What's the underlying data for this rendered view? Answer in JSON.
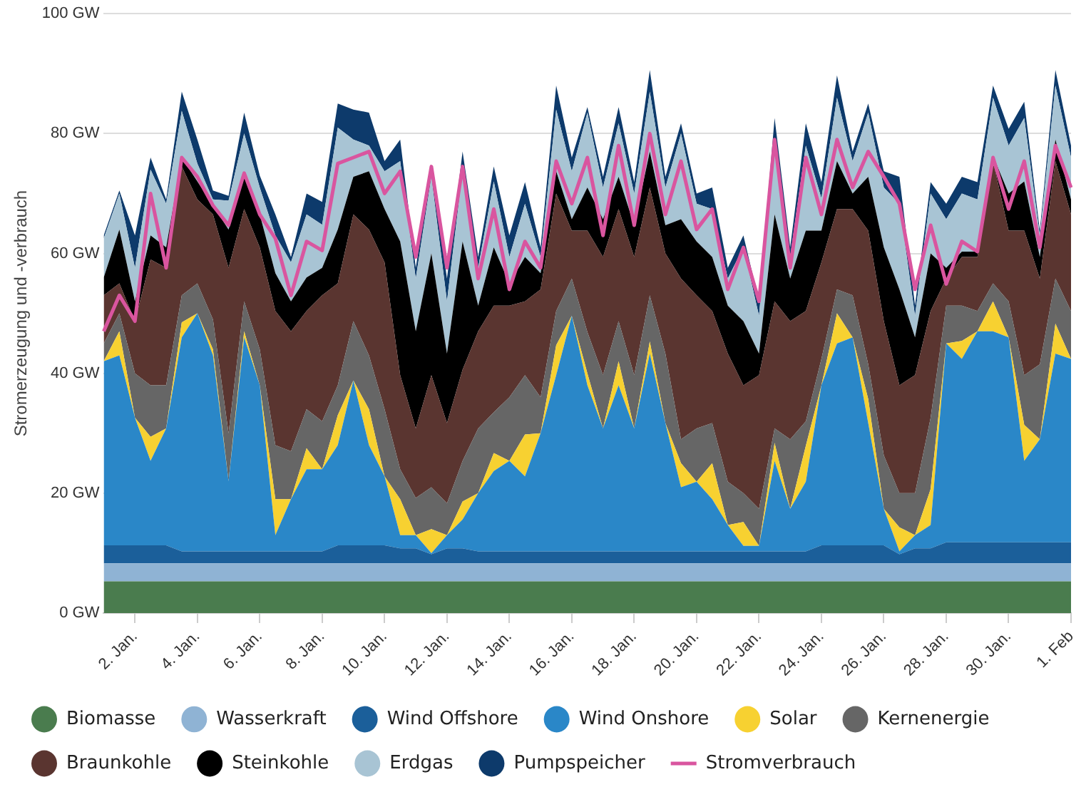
{
  "chart_data": {
    "type": "area",
    "stacked": true,
    "ylabel": "Stromerzeugung und -verbrauch",
    "legend": "bottom",
    "grid": "y",
    "categories": [
      null,
      null,
      "2. Jan.",
      null,
      null,
      null,
      "4. Jan.",
      null,
      null,
      null,
      "6. Jan.",
      null,
      null,
      null,
      "8. Jan.",
      null,
      null,
      null,
      "10. Jan.",
      null,
      null,
      null,
      "12. Jan.",
      null,
      null,
      null,
      "14. Jan.",
      null,
      null,
      null,
      "16. Jan.",
      null,
      null,
      null,
      "18. Jan.",
      null,
      null,
      null,
      "20. Jan.",
      null,
      null,
      null,
      "22. Jan.",
      null,
      null,
      null,
      "24. Jan.",
      null,
      null,
      null,
      "26. Jan.",
      null,
      null,
      null,
      "28. Jan.",
      null,
      null,
      null,
      "30. Jan.",
      null,
      null,
      null,
      "1. Feb"
    ],
    "ylim": [
      0,
      100
    ],
    "yticks": [
      {
        "value": 0,
        "label": "0 GW"
      },
      {
        "value": 20,
        "label": "20 GW"
      },
      {
        "value": 40,
        "label": "40 GW"
      },
      {
        "value": 60,
        "label": "60 GW"
      },
      {
        "value": 80,
        "label": "80 GW"
      },
      {
        "value": 100,
        "label": "100 GW"
      }
    ],
    "series": [
      {
        "name": "Biomasse",
        "color": "#4a7c4e",
        "values": [
          5.3,
          5.3,
          5.3,
          5.3,
          5.3,
          5.3,
          5.3,
          5.3,
          5.3,
          5.3,
          5.3,
          5.3,
          5.3,
          5.3,
          5.3,
          5.3,
          5.3,
          5.3,
          5.3,
          5.3,
          5.3,
          5.3,
          5.3,
          5.3,
          5.3,
          5.3,
          5.3,
          5.3,
          5.3,
          5.3,
          5.3,
          5.3,
          5.3,
          5.3,
          5.3,
          5.3,
          5.3,
          5.3,
          5.3,
          5.3,
          5.3,
          5.3,
          5.3,
          5.3,
          5.3,
          5.3,
          5.3,
          5.3,
          5.3,
          5.3,
          5.3,
          5.3,
          5.3,
          5.3,
          5.3,
          5.3,
          5.3,
          5.3,
          5.3,
          5.3,
          5.3,
          5.3,
          5.3
        ]
      },
      {
        "name": "Wasserkraft",
        "color": "#8fb3d4",
        "values": [
          3,
          3,
          3,
          3,
          3,
          3,
          3,
          3,
          3,
          3,
          3,
          3,
          3,
          3,
          3,
          3,
          3,
          3,
          3,
          3,
          3,
          3,
          3,
          3,
          3,
          3,
          3,
          3,
          3,
          3,
          3,
          3,
          3,
          3,
          3,
          3,
          3,
          3,
          3,
          3,
          3,
          3,
          3,
          3,
          3,
          3,
          3,
          3,
          3,
          3,
          3,
          3,
          3,
          3,
          3,
          3,
          3,
          3,
          3,
          3,
          3,
          3,
          3
        ]
      },
      {
        "name": "Wind Offshore",
        "color": "#1b5f9a",
        "values": [
          3,
          3,
          3,
          3,
          3,
          2,
          2,
          2,
          2,
          2,
          2,
          2,
          2,
          2,
          2,
          3,
          3,
          3,
          3,
          2.5,
          2.5,
          1.5,
          2.5,
          2.5,
          2,
          2,
          2,
          2,
          2,
          2,
          2,
          2,
          2,
          2,
          2,
          2,
          2,
          2,
          2,
          2,
          2,
          2,
          2,
          2,
          2,
          2,
          3,
          3,
          3,
          3,
          3,
          1.5,
          2.5,
          2.5,
          3.5,
          3.5,
          3.5,
          3.5,
          3.5,
          3.5,
          3.5,
          3.5,
          3.5
        ]
      },
      {
        "name": "Wind Onshore",
        "color": "#2a87c8",
        "values": [
          30.7,
          31.7,
          21.3,
          14.1,
          19.5,
          35.7,
          39.7,
          32.7,
          11.7,
          35.7,
          27.7,
          2.7,
          8.7,
          13.7,
          13.7,
          16.7,
          27.5,
          16.7,
          11.5,
          2.2,
          2.2,
          0.2,
          2.2,
          4.8,
          9.7,
          13.4,
          15.1,
          12.5,
          19.7,
          29.4,
          39.3,
          27.7,
          20.5,
          27.7,
          20.5,
          33,
          21.4,
          10.7,
          11.6,
          8.7,
          4.4,
          0.9,
          0.9,
          15.1,
          7.1,
          11.6,
          26.7,
          33.7,
          34.7,
          20.4,
          6.1,
          0.5,
          2.2,
          3.9,
          33.2,
          30.6,
          35.2,
          35.2,
          34.2,
          13.6,
          17.2,
          31.5,
          30.6
        ]
      },
      {
        "name": "Solar",
        "color": "#f7d131",
        "values": [
          0,
          4,
          0,
          4,
          0,
          2.5,
          0,
          1,
          0,
          1,
          0,
          6,
          0,
          3.5,
          0,
          5,
          0,
          6,
          0,
          6,
          0,
          4,
          0,
          3,
          0,
          3,
          0,
          7,
          0,
          5,
          0,
          2,
          0,
          4,
          0,
          2,
          0,
          4,
          0,
          6,
          0,
          4,
          0,
          3,
          0,
          6,
          0,
          5,
          0,
          4,
          0,
          4,
          0,
          6,
          0,
          3,
          0,
          5,
          0,
          6,
          0,
          5,
          0
        ]
      },
      {
        "name": "Kernenergie",
        "color": "#666666",
        "values": [
          3,
          3,
          7.4,
          8.6,
          7.2,
          4.5,
          5,
          5,
          8,
          5,
          6,
          9,
          8,
          6.5,
          8,
          5,
          9.9,
          9,
          11.2,
          5,
          6.2,
          7,
          5.3,
          6.8,
          10.8,
          6.8,
          10.6,
          9.9,
          6,
          5.7,
          6.2,
          6.9,
          8.9,
          6.7,
          8.9,
          7.7,
          11.6,
          4,
          8.9,
          6.7,
          7.2,
          4.8,
          6.2,
          2.4,
          11.6,
          4.1,
          4.4,
          4,
          7,
          5.8,
          8.9,
          5.7,
          7,
          11.9,
          6.3,
          5.9,
          3.4,
          3,
          6,
          8.3,
          12.5,
          7.5,
          8
        ]
      },
      {
        "name": "Braunkohle",
        "color": "#5a3530",
        "values": [
          8,
          5,
          8.7,
          21,
          19.6,
          21.5,
          14,
          17.5,
          27.6,
          15.4,
          17,
          22.4,
          20,
          16.4,
          21,
          17,
          17.8,
          21,
          24.5,
          15.7,
          11.6,
          18.7,
          13.4,
          15.2,
          16.2,
          17.8,
          15.3,
          12.3,
          18,
          19.6,
          8,
          16.9,
          19.7,
          18.7,
          19.7,
          18,
          16.7,
          26.8,
          22.2,
          18.7,
          21.4,
          18,
          22.3,
          21.2,
          19.7,
          18.4,
          16.1,
          13.4,
          14.4,
          22.3,
          22.4,
          18,
          19.7,
          17.8,
          4.5,
          8.1,
          9,
          20.4,
          11.8,
          24.1,
          14.3,
          19.6,
          16.1
        ]
      },
      {
        "name": "Steinkohle",
        "color": "#000000",
        "values": [
          3,
          9,
          3.3,
          4,
          3.4,
          1.5,
          3,
          1.5,
          6.4,
          5.4,
          5.5,
          6.3,
          5,
          5.6,
          4.6,
          9,
          6.3,
          9.7,
          8.9,
          22.3,
          16.2,
          20.3,
          11.6,
          21.4,
          4.3,
          9.7,
          3.7,
          7.4,
          2.7,
          3.7,
          1.9,
          7.2,
          6.3,
          5.4,
          5.3,
          6,
          4.7,
          9.9,
          9,
          9,
          8,
          10.7,
          3.6,
          14.5,
          7.1,
          13.4,
          5.3,
          8,
          2.6,
          9,
          12.3,
          16,
          6.3,
          9.6,
          1.8,
          0.9,
          0.9,
          0.9,
          6.2,
          8.2,
          3.6,
          3.6,
          2.5
        ]
      },
      {
        "name": "Erdgas",
        "color": "#a8c4d4",
        "values": [
          6.5,
          6,
          5.6,
          11,
          7.3,
          7.8,
          3,
          1,
          4.8,
          7.2,
          4.5,
          6.3,
          6.5,
          10.5,
          7.2,
          17,
          6.2,
          4.3,
          6.3,
          13.4,
          8.8,
          12.8,
          8.7,
          11.7,
          6.3,
          11,
          4.4,
          8.9,
          2.7,
          10.3,
          8,
          12.5,
          5.3,
          8.9,
          5.3,
          10,
          6.3,
          14.3,
          6.3,
          8,
          4.5,
          12.3,
          6.3,
          12.5,
          3.6,
          14.2,
          5.4,
          10.6,
          5.4,
          10.7,
          10,
          14.3,
          3.6,
          10,
          8.1,
          9.7,
          8.7,
          9.7,
          8,
          10.6,
          3.6,
          9,
          7
        ]
      },
      {
        "name": "Pumpspeicher",
        "color": "#0d3a6b",
        "values": [
          0.5,
          0.5,
          5.4,
          2,
          0.7,
          3.2,
          4,
          1.5,
          0.8,
          3.5,
          2,
          3.5,
          0.9,
          3.5,
          3.8,
          4,
          5,
          5.5,
          1.7,
          3.6,
          1.8,
          1.7,
          3.8,
          3.3,
          1.8,
          2.5,
          3.6,
          3.6,
          1.6,
          4,
          2.3,
          0.9,
          1.8,
          2.7,
          1.9,
          3.6,
          1.8,
          1.7,
          1.7,
          3.6,
          1.8,
          2,
          2.4,
          3.6,
          1.6,
          3.7,
          2.7,
          3.7,
          1.6,
          1.5,
          2.7,
          4.5,
          1.7,
          1.9,
          2.6,
          2.8,
          2.9,
          2,
          2.8,
          2.7,
          0.8,
          2.6,
          2
        ]
      },
      {
        "name": "Stromverbrauch",
        "type": "line",
        "color": "#d9559f",
        "values": [
          47,
          53,
          48.7,
          70,
          57.6,
          76,
          72.8,
          68,
          64.7,
          73.4,
          66.5,
          62.5,
          53,
          62,
          60.5,
          75,
          76,
          77,
          70,
          73.7,
          59.4,
          74.5,
          57.6,
          74.5,
          55.8,
          67.4,
          54,
          62,
          57.6,
          75.4,
          68.3,
          76,
          63,
          78,
          64.7,
          80,
          66.5,
          75.4,
          64,
          67.4,
          54,
          61,
          52,
          79,
          57.6,
          76,
          66.5,
          79,
          71,
          77,
          72.8,
          68.3,
          54,
          64.7,
          54.9,
          62,
          60.3,
          76,
          67.4,
          75.4,
          61,
          78,
          71
        ]
      }
    ]
  }
}
